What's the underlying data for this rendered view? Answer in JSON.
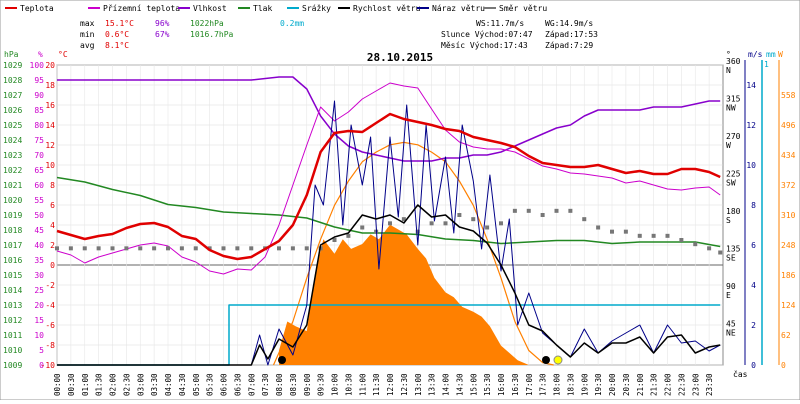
{
  "chart_data": {
    "type": "line",
    "title": "28.10.2015",
    "legend": [
      {
        "label": "Teplota",
        "color": "#e00000"
      },
      {
        "label": "Přízemní teplota",
        "color": "#cc00cc"
      },
      {
        "label": "Vlhkost",
        "color": "#8800cc"
      },
      {
        "label": "Tlak",
        "color": "#228822"
      },
      {
        "label": "Srážky",
        "color": "#00aacc"
      },
      {
        "label": "Rychlost větru",
        "color": "#000000"
      },
      {
        "label": "Náraz větru",
        "color": "#000088"
      },
      {
        "label": "Směr větru",
        "color": "#777777"
      }
    ],
    "stats": [
      {
        "label": "max",
        "t": "15.1°C",
        "h": "96%",
        "p": "1022hPa",
        "r": "0.2mm"
      },
      {
        "label": "min",
        "t": "0.6°C",
        "h": "67%",
        "p": "1016.7hPa",
        "r": ""
      },
      {
        "label": "avg",
        "t": "8.1°C",
        "h": "",
        "p": "",
        "r": ""
      }
    ],
    "info": {
      "ws": "WS:11.7m/s",
      "wg": "WG:14.9m/s",
      "sun_rise": "Slunce Východ:07:47",
      "sun_set": "Západ:17:53",
      "moon_rise": "Měsíc  Východ:17:43",
      "moon_set": "Západ:7:29"
    },
    "axes": {
      "hpa_unit": "hPa",
      "hum_unit": "%",
      "temp_unit": "°C",
      "dir_unit": "°",
      "wind_unit": "m/s",
      "rain_unit": "mm",
      "solar_unit": "W",
      "rain_max": "1",
      "hpa_ticks": [
        "1029",
        "1028",
        "1027",
        "1026",
        "1025",
        "1024",
        "1023",
        "1022",
        "1021",
        "1020",
        "1019",
        "1018",
        "1017",
        "1016",
        "1015",
        "1014",
        "1013",
        "1012",
        "1011",
        "1010",
        "1009"
      ],
      "hum_ticks": [
        "100",
        "95",
        "90",
        "85",
        "80",
        "75",
        "70",
        "65",
        "60",
        "55",
        "50",
        "45",
        "40",
        "35",
        "30",
        "25",
        "20",
        "15",
        "10",
        "5",
        "0"
      ],
      "temp_ticks": [
        "20",
        "18",
        "16",
        "14",
        "12",
        "10",
        "8",
        "6",
        "4",
        "2",
        "0",
        "-2",
        "-4",
        "-6",
        "-8",
        "-10"
      ],
      "dir_ticks": [
        {
          "deg": "360",
          "dir": "N"
        },
        {
          "deg": "315",
          "dir": "NW"
        },
        {
          "deg": "270",
          "dir": "W"
        },
        {
          "deg": "225",
          "dir": "SW"
        },
        {
          "deg": "180",
          "dir": "S"
        },
        {
          "deg": "135",
          "dir": "SE"
        },
        {
          "deg": "90",
          "dir": "E"
        },
        {
          "deg": "45",
          "dir": "NE"
        }
      ],
      "wind_ticks": [
        "14",
        "12",
        "10",
        "8",
        "6",
        "4",
        "2",
        "0"
      ],
      "solar_ticks": [
        "558",
        "496",
        "434",
        "372",
        "310",
        "248",
        "186",
        "124",
        "62",
        "0"
      ],
      "time_label": "čas",
      "time_ticks": [
        "00:00",
        "00:30",
        "01:00",
        "01:30",
        "02:00",
        "02:30",
        "03:00",
        "03:30",
        "04:00",
        "04:30",
        "05:00",
        "05:30",
        "06:00",
        "06:30",
        "07:00",
        "07:30",
        "08:00",
        "08:30",
        "09:00",
        "09:30",
        "10:00",
        "10:30",
        "11:00",
        "11:30",
        "12:00",
        "12:30",
        "13:00",
        "13:30",
        "14:00",
        "14:30",
        "15:00",
        "15:30",
        "16:00",
        "16:30",
        "17:00",
        "17:30",
        "18:00",
        "18:30",
        "19:00",
        "19:30",
        "20:00",
        "20:30",
        "21:00",
        "21:30",
        "22:00",
        "22:30",
        "23:00",
        "23:30"
      ]
    },
    "series": {
      "temperature_c": {
        "x_hours": [
          0,
          0.5,
          1,
          1.5,
          2,
          2.5,
          3,
          3.5,
          4,
          4.5,
          5,
          5.5,
          6,
          6.5,
          7,
          7.5,
          8,
          8.5,
          9,
          9.5,
          10,
          10.5,
          11,
          11.5,
          12,
          12.5,
          13,
          13.5,
          14,
          14.5,
          15,
          15.5,
          16,
          16.5,
          17,
          17.5,
          18,
          18.5,
          19,
          19.5,
          20,
          20.5,
          21,
          21.5,
          22,
          22.5,
          23,
          23.5,
          23.9
        ],
        "y": [
          3.4,
          3,
          2.6,
          2.9,
          3.1,
          3.7,
          4.1,
          4.2,
          3.8,
          2.9,
          2.6,
          1.5,
          0.9,
          0.6,
          0.8,
          1.6,
          2.4,
          4,
          7,
          11.3,
          13.2,
          13.4,
          13.3,
          14.2,
          15.1,
          14.6,
          14.3,
          14,
          13.6,
          13.4,
          12.8,
          12.5,
          12.2,
          11.8,
          10.9,
          10.2,
          10,
          9.8,
          9.8,
          10,
          9.6,
          9.2,
          9.4,
          9.1,
          9.1,
          9.6,
          9.6,
          9.3,
          8.8
        ]
      },
      "ground_temperature_c": {
        "x_hours": [
          0,
          0.5,
          1,
          1.5,
          2,
          2.5,
          3,
          3.5,
          4,
          4.5,
          5,
          5.5,
          6,
          6.5,
          7,
          7.5,
          8,
          8.5,
          9,
          9.5,
          10,
          10.5,
          11,
          11.5,
          12,
          12.5,
          13,
          13.5,
          14,
          14.5,
          15,
          15.5,
          16,
          16.5,
          17,
          17.5,
          18,
          18.5,
          19,
          19.5,
          20,
          20.5,
          21,
          21.5,
          22,
          22.5,
          23,
          23.5,
          23.9
        ],
        "y": [
          1.4,
          1,
          0.2,
          0.8,
          1.2,
          1.6,
          2,
          2.2,
          1.9,
          0.8,
          0.3,
          -0.6,
          -0.9,
          -0.4,
          -0.5,
          0.8,
          4,
          8,
          12,
          15.8,
          14.4,
          15.3,
          16.6,
          17.4,
          18.2,
          17.9,
          17.7,
          15.6,
          13.5,
          12.3,
          11.8,
          11.6,
          11.6,
          11.3,
          10.6,
          9.9,
          9.6,
          9.2,
          9.1,
          8.9,
          8.7,
          8.2,
          8.4,
          8,
          7.6,
          7.5,
          7.7,
          7.8,
          7
        ]
      },
      "humidity_pct": {
        "x_hours": [
          0,
          1,
          2,
          3,
          4,
          5,
          6,
          7,
          8,
          8.5,
          9,
          9.5,
          10,
          10.5,
          11,
          11.5,
          12,
          12.5,
          13,
          13.5,
          14,
          14.5,
          15,
          15.5,
          16,
          16.5,
          17,
          17.5,
          18,
          18.5,
          19,
          19.5,
          20,
          20.5,
          21,
          21.5,
          22,
          22.5,
          23,
          23.5,
          23.9
        ],
        "y": [
          95,
          95,
          95,
          95,
          95,
          95,
          95,
          95,
          96,
          96,
          92,
          83,
          77,
          73,
          71,
          70,
          69,
          68,
          68,
          68,
          69,
          69,
          70,
          70,
          71,
          73,
          75,
          77,
          79,
          80,
          83,
          85,
          85,
          85,
          85,
          86,
          86,
          86,
          87,
          88,
          88
        ]
      },
      "pressure_hpa": {
        "x_hours": [
          0,
          1,
          2,
          3,
          4,
          5,
          6,
          7,
          8,
          9,
          10,
          11,
          12,
          13,
          14,
          15,
          16,
          17,
          18,
          19,
          20,
          21,
          22,
          23,
          23.9
        ],
        "y": [
          1021.5,
          1021.2,
          1020.7,
          1020.3,
          1019.7,
          1019.5,
          1019.2,
          1019.1,
          1019,
          1018.8,
          1018.2,
          1017.8,
          1017.8,
          1017.7,
          1017.4,
          1017.3,
          1017.1,
          1017.2,
          1017.3,
          1017.3,
          1017.1,
          1017.2,
          1017.2,
          1017.2,
          1016.9
        ]
      },
      "rain_mm": {
        "x_hours": [
          0,
          6.2,
          6.2,
          23.9
        ],
        "y": [
          0,
          0,
          0.2,
          0.2
        ]
      },
      "wind_speed_ms": {
        "x_hours": [
          0,
          1,
          2,
          3,
          4,
          5,
          6,
          7,
          7.3,
          7.6,
          8,
          8.5,
          9,
          9.5,
          10,
          10.5,
          11,
          11.5,
          12,
          12.5,
          13,
          13.5,
          14,
          14.5,
          15,
          15.5,
          16,
          16.5,
          17,
          17.5,
          18,
          18.5,
          19,
          19.5,
          20,
          20.5,
          21,
          21.5,
          22,
          22.5,
          23,
          23.5,
          23.9
        ],
        "y": [
          0,
          0,
          0,
          0,
          0,
          0,
          0,
          0,
          1,
          0.3,
          1.3,
          0.9,
          2,
          6,
          6.4,
          6.6,
          7.5,
          7.3,
          7.5,
          7.1,
          8,
          7.4,
          7.5,
          6.9,
          6.7,
          6.1,
          5,
          3.6,
          2,
          1.7,
          1,
          0.4,
          1.1,
          0.6,
          1.1,
          1.1,
          1.4,
          0.6,
          1.4,
          1.5,
          0.6,
          0.9,
          1
        ]
      },
      "wind_gust_ms": {
        "x_hours": [
          0,
          7,
          7.3,
          7.6,
          8,
          8.5,
          9,
          9.3,
          9.6,
          10,
          10.3,
          10.6,
          11,
          11.3,
          11.6,
          12,
          12.3,
          12.6,
          13,
          13.3,
          13.6,
          14,
          14.3,
          14.6,
          15,
          15.3,
          15.6,
          16,
          16.3,
          16.6,
          17,
          17.5,
          18,
          18.5,
          19,
          19.5,
          20,
          20.5,
          21,
          21.5,
          22,
          22.5,
          23,
          23.5,
          23.9
        ],
        "y": [
          0,
          0,
          1.5,
          0,
          1.8,
          0.5,
          3,
          9,
          8,
          13.2,
          7,
          12,
          9,
          11.4,
          4.8,
          11.4,
          7.4,
          13,
          6,
          12,
          7.2,
          10.4,
          6.6,
          12,
          9.2,
          5.8,
          9.5,
          4.7,
          7.3,
          2,
          3.6,
          1.6,
          1,
          0.4,
          1.8,
          0.6,
          1.2,
          1.6,
          2,
          0.6,
          2,
          1.1,
          1.2,
          0.7,
          1
        ]
      },
      "wind_dir_deg": {
        "x_hours": [
          0,
          0.5,
          1,
          1.5,
          2,
          2.5,
          3,
          3.5,
          4,
          4.5,
          5,
          5.5,
          6,
          6.5,
          7,
          7.5,
          8,
          8.5,
          9,
          9.5,
          10,
          10.5,
          11,
          11.5,
          12,
          12.5,
          13,
          13.5,
          14,
          14.5,
          15,
          15.5,
          16,
          16.5,
          17,
          17.5,
          18,
          18.5,
          19,
          19.5,
          20,
          20.5,
          21,
          21.5,
          22,
          22.5,
          23,
          23.5,
          23.9
        ],
        "y": [
          140,
          140,
          140,
          140,
          140,
          140,
          140,
          140,
          140,
          140,
          140,
          140,
          140,
          140,
          140,
          140,
          140,
          140,
          140,
          140,
          150,
          155,
          165,
          160,
          170,
          175,
          160,
          170,
          170,
          180,
          175,
          165,
          170,
          185,
          185,
          180,
          185,
          185,
          175,
          165,
          160,
          160,
          155,
          155,
          155,
          150,
          145,
          140,
          135
        ]
      },
      "solar_wm2": {
        "x_hours": [
          8,
          8.3,
          8.6,
          9,
          9.3,
          9.6,
          10,
          10.3,
          10.6,
          11,
          11.3,
          11.6,
          12,
          12.3,
          12.6,
          13,
          13.3,
          13.6,
          14,
          14.3,
          14.6,
          15,
          15.3,
          15.6,
          16,
          16.3,
          16.6,
          17
        ],
        "y": [
          30,
          90,
          80,
          70,
          190,
          260,
          230,
          260,
          240,
          250,
          270,
          260,
          290,
          280,
          270,
          240,
          220,
          180,
          150,
          140,
          120,
          110,
          100,
          80,
          40,
          25,
          10,
          0
        ]
      },
      "solar_theoretical_wm2": {
        "x_hours": [
          7.8,
          8.5,
          9,
          9.5,
          10,
          10.5,
          11,
          11.5,
          12,
          12.5,
          13,
          13.5,
          14,
          14.5,
          15,
          15.5,
          16,
          16.5,
          17,
          17.5,
          17.9
        ],
        "y": [
          0,
          90,
          180,
          260,
          330,
          380,
          420,
          440,
          455,
          460,
          455,
          440,
          420,
          380,
          330,
          260,
          180,
          90,
          30,
          5,
          0
        ]
      }
    }
  }
}
